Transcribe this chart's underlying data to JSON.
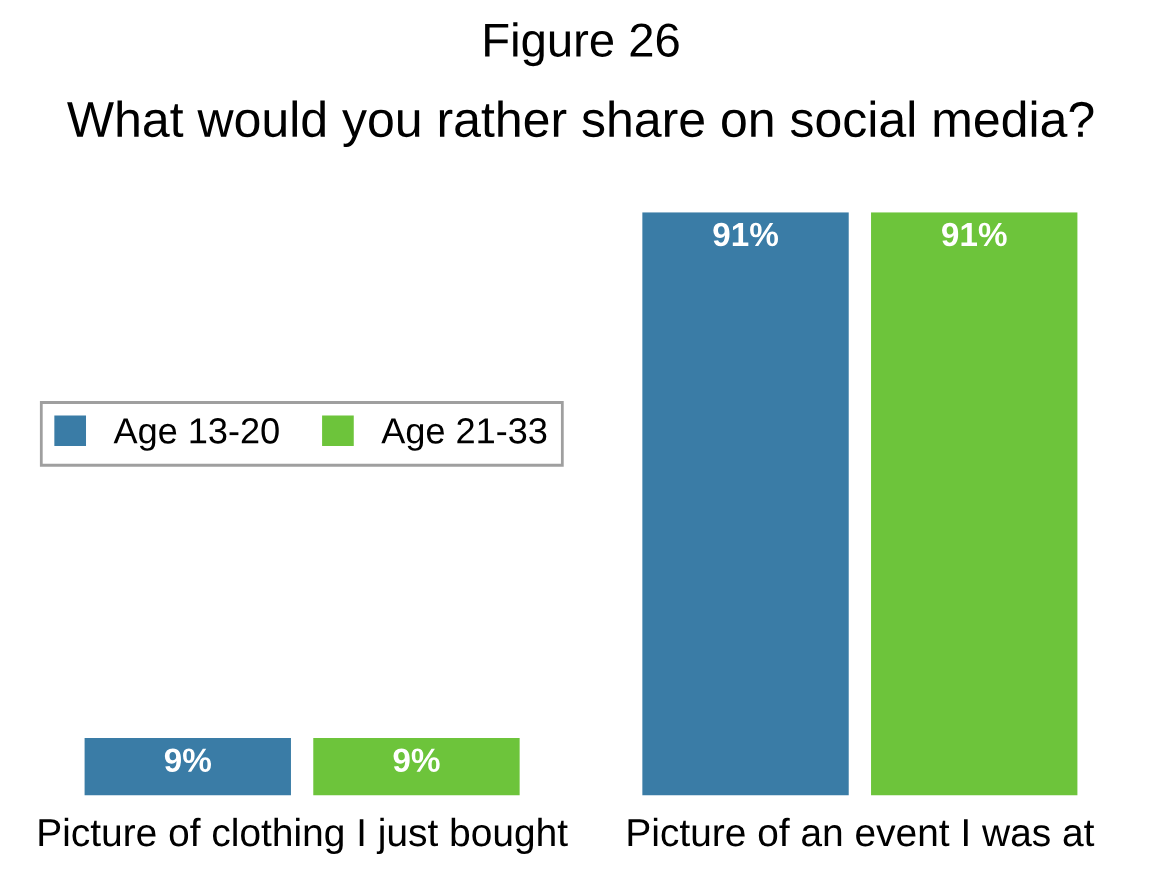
{
  "chart_data": {
    "type": "bar",
    "title": "Figure 26",
    "subtitle": "What would you rather share on social media?",
    "categories": [
      "Picture of clothing I just bought",
      "Picture of an event I was at"
    ],
    "series": [
      {
        "name": "Age 13-20",
        "color": "#3a7ca6",
        "values": [
          9,
          91
        ],
        "value_labels": [
          "9%",
          "91%"
        ]
      },
      {
        "name": "Age 21-33",
        "color": "#6dc43b",
        "values": [
          9,
          91
        ],
        "value_labels": [
          "9%",
          "91%"
        ]
      }
    ],
    "legend": "left",
    "grid": false
  }
}
